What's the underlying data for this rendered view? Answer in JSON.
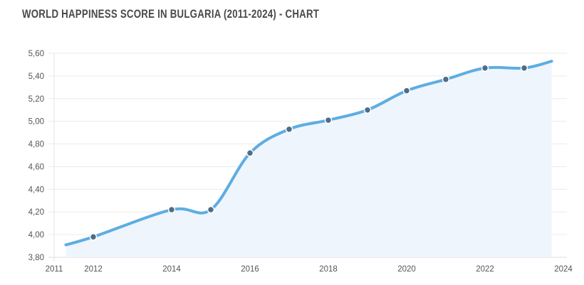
{
  "chart_data": {
    "type": "area",
    "title": "WORLD HAPPINESS SCORE IN BULGARIA (2011-2024) - CHART",
    "xlabel": "",
    "ylabel": "",
    "xlim": [
      2011,
      2024
    ],
    "ylim": [
      3.8,
      5.6
    ],
    "x_ticks": [
      "2011",
      "2012",
      "2014",
      "2016",
      "2018",
      "2020",
      "2022",
      "2024"
    ],
    "y_ticks": [
      "3,80",
      "4,00",
      "4,20",
      "4,40",
      "4,60",
      "4,80",
      "5,00",
      "5,20",
      "5,40",
      "5,60"
    ],
    "grid": true,
    "line_color": "#5dade2",
    "fill_color": "#eef5fd",
    "marker_color": "#4f6d87",
    "points": [
      {
        "x": 2011.3,
        "y": 3.91,
        "marker": false
      },
      {
        "x": 2012,
        "y": 3.98,
        "marker": true
      },
      {
        "x": 2014,
        "y": 4.22,
        "marker": true
      },
      {
        "x": 2015,
        "y": 4.22,
        "marker": true
      },
      {
        "x": 2016,
        "y": 4.72,
        "marker": true
      },
      {
        "x": 2017,
        "y": 4.93,
        "marker": true
      },
      {
        "x": 2018,
        "y": 5.01,
        "marker": true
      },
      {
        "x": 2019,
        "y": 5.1,
        "marker": true
      },
      {
        "x": 2020,
        "y": 5.27,
        "marker": true
      },
      {
        "x": 2021,
        "y": 5.37,
        "marker": true
      },
      {
        "x": 2022,
        "y": 5.47,
        "marker": true
      },
      {
        "x": 2023,
        "y": 5.47,
        "marker": true
      },
      {
        "x": 2023.7,
        "y": 5.53,
        "marker": false
      }
    ]
  }
}
